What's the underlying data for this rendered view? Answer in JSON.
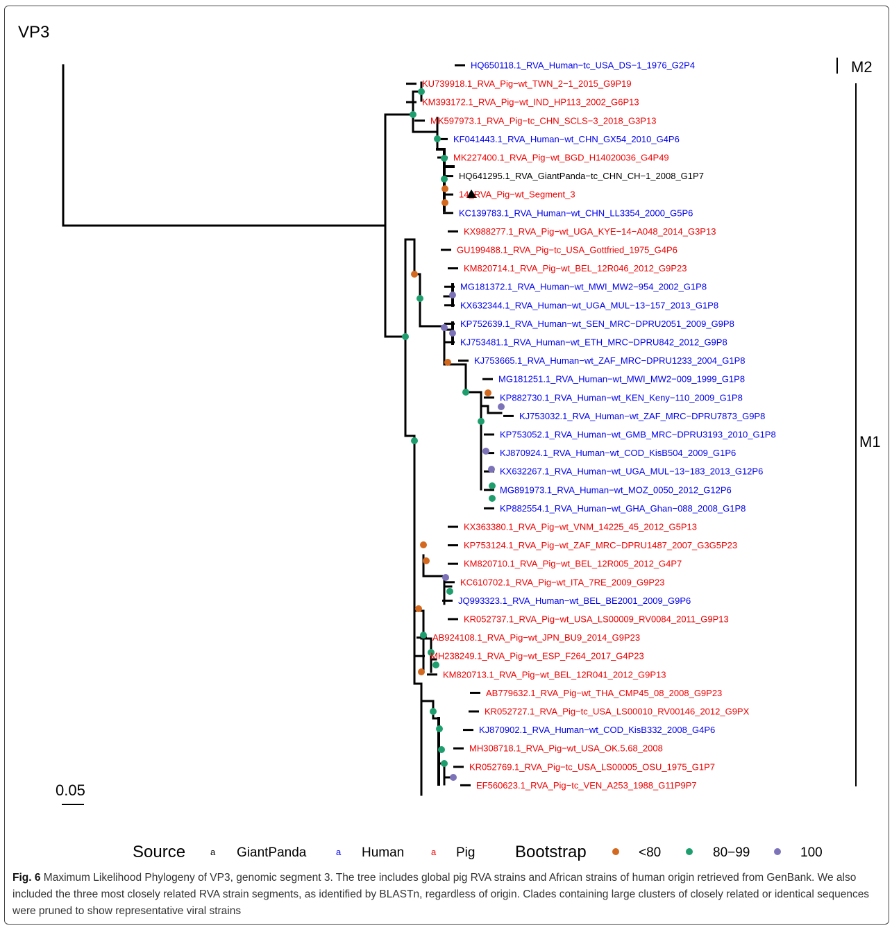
{
  "panel_title": "VP3",
  "colors": {
    "GiantPanda": "#000000",
    "Human": "#0000ee",
    "Pig": "#ee0000",
    "b_lt80": "#d2691e",
    "b_80_99": "#1e9e6e",
    "b_100": "#7b72b8"
  },
  "tips": [
    {
      "label": "HQ650118.1_RVA_Human−tc_USA_DS−1_1976_G2P4",
      "source": "Human"
    },
    {
      "label": "KU739918.1_RVA_Pig−wt_TWN_2−1_2015_G9P19",
      "source": "Pig"
    },
    {
      "label": "KM393172.1_RVA_Pig−wt_IND_HP113_2002_G6P13",
      "source": "Pig"
    },
    {
      "label": "MK597973.1_RVA_Pig−tc_CHN_SCLS−3_2018_G3P13",
      "source": "Pig"
    },
    {
      "label": "KF041443.1_RVA_Human−wt_CHN_GX54_2010_G4P6",
      "source": "Human"
    },
    {
      "label": "MK227400.1_RVA_Pig−wt_BGD_H14020036_G4P49",
      "source": "Pig"
    },
    {
      "label": "HQ641295.1_RVA_GiantPanda−tc_CHN_CH−1_2008_G1P7",
      "source": "GiantPanda"
    },
    {
      "label": "14_RVA_Pig−wt_Segment_3",
      "source": "Pig"
    },
    {
      "label": "KC139783.1_RVA_Human−wt_CHN_LL3354_2000_G5P6",
      "source": "Human"
    },
    {
      "label": "KX988277.1_RVA_Pig−wt_UGA_KYE−14−A048_2014_G3P13",
      "source": "Pig"
    },
    {
      "label": "GU199488.1_RVA_Pig−tc_USA_Gottfried_1975_G4P6",
      "source": "Pig"
    },
    {
      "label": "KM820714.1_RVA_Pig−wt_BEL_12R046_2012_G9P23",
      "source": "Pig"
    },
    {
      "label": "MG181372.1_RVA_Human−wt_MWI_MW2−954_2002_G1P8",
      "source": "Human"
    },
    {
      "label": "KX632344.1_RVA_Human−wt_UGA_MUL−13−157_2013_G1P8",
      "source": "Human"
    },
    {
      "label": "KP752639.1_RVA_Human−wt_SEN_MRC−DPRU2051_2009_G9P8",
      "source": "Human"
    },
    {
      "label": "KJ753481.1_RVA_Human−wt_ETH_MRC−DPRU842_2012_G9P8",
      "source": "Human"
    },
    {
      "label": "KJ753665.1_RVA_Human−wt_ZAF_MRC−DPRU1233_2004_G1P8",
      "source": "Human"
    },
    {
      "label": "MG181251.1_RVA_Human−wt_MWI_MW2−009_1999_G1P8",
      "source": "Human"
    },
    {
      "label": "KP882730.1_RVA_Human−wt_KEN_Keny−110_2009_G1P8",
      "source": "Human"
    },
    {
      "label": "KJ753032.1_RVA_Human−wt_ZAF_MRC−DPRU7873_G9P8",
      "source": "Human"
    },
    {
      "label": "KP753052.1_RVA_Human−wt_GMB_MRC−DPRU3193_2010_G1P8",
      "source": "Human"
    },
    {
      "label": "KJ870924.1_RVA_Human−wt_COD_KisB504_2009_G1P6",
      "source": "Human"
    },
    {
      "label": "KX632267.1_RVA_Human−wt_UGA_MUL−13−183_2013_G12P6",
      "source": "Human"
    },
    {
      "label": "MG891973.1_RVA_Human−wt_MOZ_0050_2012_G12P6",
      "source": "Human"
    },
    {
      "label": "KP882554.1_RVA_Human−wt_GHA_Ghan−088_2008_G1P8",
      "source": "Human"
    },
    {
      "label": "KX363380.1_RVA_Pig−wt_VNM_14225_45_2012_G5P13",
      "source": "Pig"
    },
    {
      "label": "KP753124.1_RVA_Pig−wt_ZAF_MRC−DPRU1487_2007_G3G5P23",
      "source": "Pig"
    },
    {
      "label": "KM820710.1_RVA_Pig−wt_BEL_12R005_2012_G4P7",
      "source": "Pig"
    },
    {
      "label": "KC610702.1_RVA_Pig−wt_ITA_7RE_2009_G9P23",
      "source": "Pig"
    },
    {
      "label": "JQ993323.1_RVA_Human−wt_BEL_BE2001_2009_G9P6",
      "source": "Human"
    },
    {
      "label": "KR052737.1_RVA_Pig−wt_USA_LS00009_RV0084_2011_G9P13",
      "source": "Pig"
    },
    {
      "label": "AB924108.1_RVA_Pig−wt_JPN_BU9_2014_G9P23",
      "source": "Pig"
    },
    {
      "label": "MH238249.1_RVA_Pig−wt_ESP_F264_2017_G4P23",
      "source": "Pig"
    },
    {
      "label": "KM820713.1_RVA_Pig−wt_BEL_12R041_2012_G9P13",
      "source": "Pig"
    },
    {
      "label": "AB779632.1_RVA_Pig−wt_THA_CMP45_08_2008_G9P23",
      "source": "Pig"
    },
    {
      "label": "KR052727.1_RVA_Pig−tc_USA_LS00010_RV00146_2012_G9PX",
      "source": "Pig"
    },
    {
      "label": "KJ870902.1_RVA_Human−wt_COD_KisB332_2008_G4P6",
      "source": "Human"
    },
    {
      "label": "MH308718.1_RVA_Pig−wt_USA_OK.5.68_2008",
      "source": "Pig"
    },
    {
      "label": "KR052769.1_RVA_Pig−tc_USA_LS00005_OSU_1975_G1P7",
      "source": "Pig"
    },
    {
      "label": "EF560623.1_RVA_Pig−tc_VEN_A253_1988_G11P9P7",
      "source": "Pig"
    }
  ],
  "clades": [
    {
      "label": "M2"
    },
    {
      "label": "M1"
    }
  ],
  "scale_bar": {
    "label": "0.05",
    "value": 0.05
  },
  "legend": {
    "source_title": "Source",
    "source_items": [
      {
        "key": "a",
        "label": "GiantPanda",
        "color": "#000000"
      },
      {
        "key": "a",
        "label": "Human",
        "color": "#0000ee"
      },
      {
        "key": "a",
        "label": "Pig",
        "color": "#ee0000"
      }
    ],
    "bootstrap_title": "Bootstrap",
    "bootstrap_items": [
      {
        "label": "<80",
        "color": "#d2691e"
      },
      {
        "label": "80−99",
        "color": "#1e9e6e"
      },
      {
        "label": "100",
        "color": "#7b72b8"
      }
    ]
  },
  "caption": {
    "prefix": "Fig. 6",
    "text": " Maximum Likelihood Phylogeny of VP3, genomic segment 3. The tree includes global pig RVA strains and African strains of human origin retrieved from GenBank. We also included the three most closely related RVA strain segments, as identified by BLASTn, regardless of origin. Clades containing large clusters of closely related or identical sequences were pruned to show representative viral strains"
  }
}
